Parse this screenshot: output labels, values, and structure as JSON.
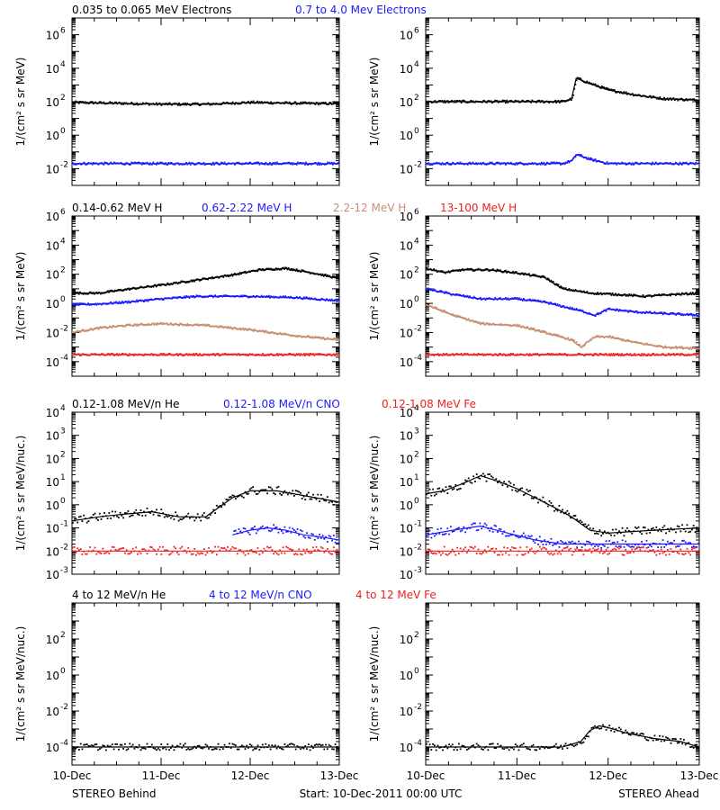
{
  "colors": {
    "black": "#000000",
    "blue": "#1a1aff",
    "tan": "#c98e72",
    "red": "#ee2020"
  },
  "footer": {
    "left": "STEREO Behind",
    "center": "Start: 10-Dec-2011 00:00 UTC",
    "right": "STEREO Ahead"
  },
  "x_ticks": [
    "10-Dec",
    "11-Dec",
    "12-Dec",
    "13-Dec"
  ],
  "chart_data": [
    {
      "type": "scatter",
      "row": 0,
      "panel_side": "left",
      "ylabel": "1/(cm² s sr MeV)",
      "yscale": "log",
      "ylim": [
        0.001,
        10000000
      ],
      "y_tick_exponents": [
        -2,
        0,
        2,
        4,
        6
      ],
      "series_titles": [
        {
          "name": "0.035 to 0.065 MeV Electrons",
          "color": "black"
        },
        {
          "name": "0.7 to 4.0 Mev Electrons",
          "color": "blue"
        }
      ],
      "series": [
        {
          "color": "black",
          "x": [
            10.0,
            10.5,
            11.0,
            11.5,
            12.0,
            12.5,
            13.0
          ],
          "y": [
            90,
            80,
            70,
            70,
            90,
            80,
            75
          ]
        },
        {
          "color": "blue",
          "x": [
            10.0,
            10.5,
            11.0,
            11.5,
            12.0,
            12.5,
            13.0
          ],
          "y": [
            0.02,
            0.02,
            0.02,
            0.02,
            0.02,
            0.02,
            0.02
          ]
        }
      ]
    },
    {
      "type": "scatter",
      "row": 0,
      "panel_side": "right",
      "ylabel": "1/(cm² s sr MeV)",
      "yscale": "log",
      "ylim": [
        0.001,
        10000000
      ],
      "y_tick_exponents": [
        -2,
        0,
        2,
        4,
        6
      ],
      "series": [
        {
          "color": "black",
          "x": [
            10.0,
            10.5,
            11.0,
            11.5,
            11.6,
            11.65,
            11.8,
            12.0,
            12.3,
            12.6,
            13.0
          ],
          "y": [
            100,
            100,
            100,
            100,
            150,
            2500,
            1200,
            500,
            250,
            150,
            120
          ]
        },
        {
          "color": "blue",
          "x": [
            10.0,
            10.5,
            11.0,
            11.5,
            11.6,
            11.65,
            11.8,
            12.0,
            12.5,
            13.0
          ],
          "y": [
            0.02,
            0.02,
            0.02,
            0.02,
            0.03,
            0.07,
            0.035,
            0.02,
            0.02,
            0.02
          ]
        }
      ]
    },
    {
      "type": "scatter",
      "row": 1,
      "panel_side": "left",
      "ylabel": "1/(cm² s sr MeV)",
      "yscale": "log",
      "ylim": [
        1e-05,
        1000000
      ],
      "y_tick_exponents": [
        -4,
        -2,
        0,
        2,
        4,
        6
      ],
      "series_titles": [
        {
          "name": "0.14-0.62 MeV H",
          "color": "black"
        },
        {
          "name": "0.62-2.22 MeV H",
          "color": "blue"
        },
        {
          "name": "2.2-12 MeV H",
          "color": "tan"
        },
        {
          "name": "13-100 MeV H",
          "color": "red"
        }
      ],
      "series": [
        {
          "color": "black",
          "x": [
            10.0,
            10.3,
            10.6,
            11.0,
            11.4,
            11.8,
            12.1,
            12.4,
            12.7,
            13.0
          ],
          "y": [
            5,
            5,
            9,
            18,
            40,
            90,
            200,
            250,
            120,
            50
          ]
        },
        {
          "color": "blue",
          "x": [
            10.0,
            10.3,
            10.6,
            11.0,
            11.4,
            12.0,
            12.5,
            13.0
          ],
          "y": [
            0.8,
            0.9,
            1.2,
            2,
            3,
            3,
            2.5,
            1.5
          ]
        },
        {
          "color": "tan",
          "x": [
            10.0,
            10.3,
            10.6,
            11.0,
            11.5,
            12.0,
            12.5,
            13.0
          ],
          "y": [
            0.01,
            0.02,
            0.03,
            0.04,
            0.03,
            0.015,
            0.006,
            0.003
          ]
        },
        {
          "color": "red",
          "x": [
            10.0,
            10.5,
            11.0,
            11.5,
            12.0,
            12.5,
            13.0
          ],
          "y": [
            0.0003,
            0.0003,
            0.0003,
            0.0003,
            0.0003,
            0.0003,
            0.0003
          ]
        }
      ]
    },
    {
      "type": "scatter",
      "row": 1,
      "panel_side": "right",
      "ylabel": "1/(cm² s sr MeV)",
      "yscale": "log",
      "ylim": [
        1e-05,
        1000000
      ],
      "y_tick_exponents": [
        -4,
        -2,
        0,
        2,
        4,
        6
      ],
      "series": [
        {
          "color": "black",
          "x": [
            10.0,
            10.2,
            10.4,
            10.7,
            11.0,
            11.3,
            11.5,
            11.8,
            12.1,
            12.4,
            12.7,
            13.0
          ],
          "y": [
            250,
            130,
            200,
            200,
            120,
            60,
            10,
            5,
            4,
            3,
            4,
            5
          ]
        },
        {
          "color": "blue",
          "x": [
            10.0,
            10.3,
            10.6,
            11.0,
            11.3,
            11.5,
            11.7,
            11.85,
            12.0,
            12.3,
            12.6,
            13.0
          ],
          "y": [
            10,
            4,
            2,
            2,
            1.2,
            0.6,
            0.3,
            0.15,
            0.4,
            0.25,
            0.2,
            0.15
          ]
        },
        {
          "color": "tan",
          "x": [
            10.0,
            10.3,
            10.6,
            11.0,
            11.3,
            11.6,
            11.7,
            11.85,
            12.0,
            12.3,
            12.6,
            13.0
          ],
          "y": [
            0.8,
            0.15,
            0.04,
            0.03,
            0.01,
            0.003,
            0.001,
            0.005,
            0.005,
            0.002,
            0.001,
            0.0008
          ]
        },
        {
          "color": "red",
          "x": [
            10.0,
            10.5,
            11.0,
            11.5,
            12.0,
            12.5,
            13.0
          ],
          "y": [
            0.0003,
            0.0003,
            0.0003,
            0.0003,
            0.0003,
            0.0003,
            0.0003
          ]
        }
      ]
    },
    {
      "type": "scatter",
      "row": 2,
      "panel_side": "left",
      "ylabel": "1/(cm² s sr MeV/nuc.)",
      "yscale": "log",
      "ylim": [
        0.001,
        10000
      ],
      "y_tick_exponents": [
        -3,
        -2,
        -1,
        0,
        1,
        2,
        3,
        4
      ],
      "series_titles": [
        {
          "name": "0.12-1.08 MeV/n He",
          "color": "black"
        },
        {
          "name": "0.12-1.08 MeV/n CNO",
          "color": "blue"
        },
        {
          "name": "0.12-1.08 MeV Fe",
          "color": "red"
        }
      ],
      "series": [
        {
          "color": "black",
          "x": [
            10.0,
            10.3,
            10.6,
            10.9,
            11.2,
            11.5,
            11.8,
            12.0,
            12.3,
            12.6,
            13.0
          ],
          "y": [
            0.2,
            0.3,
            0.4,
            0.5,
            0.3,
            0.3,
            2,
            4,
            4,
            2.5,
            1.3
          ]
        },
        {
          "color": "blue",
          "x": [
            11.8,
            12.0,
            12.2,
            12.4,
            12.6,
            12.8,
            13.0
          ],
          "y": [
            0.05,
            0.08,
            0.1,
            0.08,
            0.05,
            0.04,
            0.03
          ]
        },
        {
          "color": "red",
          "x": [
            10.0,
            10.5,
            11.0,
            11.5,
            12.0,
            12.5,
            13.0
          ],
          "y": [
            0.01,
            0.01,
            0.01,
            0.01,
            0.01,
            0.01,
            0.01
          ]
        }
      ]
    },
    {
      "type": "scatter",
      "row": 2,
      "panel_side": "right",
      "ylabel": "1/(cm² s sr MeV/nuc.)",
      "yscale": "log",
      "ylim": [
        0.001,
        10000
      ],
      "y_tick_exponents": [
        -3,
        -2,
        -1,
        0,
        1,
        2,
        3,
        4
      ],
      "series": [
        {
          "color": "black",
          "x": [
            10.0,
            10.2,
            10.4,
            10.6,
            10.8,
            11.0,
            11.2,
            11.4,
            11.6,
            11.8,
            12.0,
            12.5,
            13.0
          ],
          "y": [
            3,
            4,
            8,
            18,
            10,
            5,
            2,
            0.8,
            0.3,
            0.08,
            0.06,
            0.08,
            0.1
          ]
        },
        {
          "color": "blue",
          "x": [
            10.0,
            10.3,
            10.6,
            10.9,
            11.2,
            11.5,
            12.0,
            12.5,
            13.0
          ],
          "y": [
            0.05,
            0.08,
            0.12,
            0.06,
            0.03,
            0.02,
            0.02,
            0.02,
            0.02
          ]
        },
        {
          "color": "red",
          "x": [
            10.0,
            10.5,
            11.0,
            11.5,
            12.0,
            12.5,
            13.0
          ],
          "y": [
            0.01,
            0.01,
            0.01,
            0.01,
            0.01,
            0.01,
            0.01
          ]
        }
      ]
    },
    {
      "type": "scatter",
      "row": 3,
      "panel_side": "left",
      "ylabel": "1/(cm² s sr MeV/nuc.)",
      "yscale": "log",
      "ylim": [
        1e-05,
        10000
      ],
      "y_tick_exponents": [
        -4,
        -2,
        0,
        2
      ],
      "series_titles": [
        {
          "name": "4 to 12 MeV/n He",
          "color": "black"
        },
        {
          "name": "4 to 12 MeV/n CNO",
          "color": "blue"
        },
        {
          "name": "4 to 12 MeV Fe",
          "color": "red"
        }
      ],
      "series": [
        {
          "color": "black",
          "x": [
            10.0,
            10.5,
            11.0,
            11.5,
            12.0,
            12.5,
            13.0
          ],
          "y": [
            0.0001,
            0.0001,
            0.0001,
            0.0001,
            0.0001,
            0.0001,
            0.0001
          ]
        }
      ]
    },
    {
      "type": "scatter",
      "row": 3,
      "panel_side": "right",
      "ylabel": "1/(cm² s sr MeV/nuc.)",
      "yscale": "log",
      "ylim": [
        1e-05,
        10000
      ],
      "y_tick_exponents": [
        -4,
        -2,
        0,
        2
      ],
      "series": [
        {
          "color": "black",
          "x": [
            10.0,
            10.5,
            11.0,
            11.5,
            11.7,
            11.8,
            11.9,
            12.0,
            12.2,
            12.5,
            12.8,
            13.0
          ],
          "y": [
            0.0001,
            0.0001,
            0.0001,
            0.0001,
            0.0002,
            0.0008,
            0.0015,
            0.0012,
            0.0006,
            0.0003,
            0.0002,
            0.0001
          ]
        }
      ]
    }
  ]
}
